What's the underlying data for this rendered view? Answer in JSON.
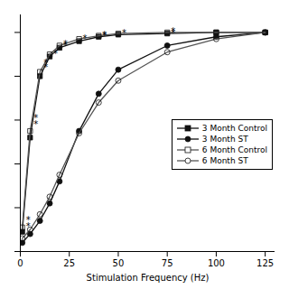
{
  "chart_data": {
    "type": "line",
    "xlabel": "Stimulation Frequency (Hz)",
    "xlim": [
      0,
      130
    ],
    "ylim": [
      0,
      1.08
    ],
    "xticks": [
      0,
      25,
      50,
      75,
      100,
      125
    ],
    "yticks": [
      0,
      0.2,
      0.4,
      0.6,
      0.8,
      1.0
    ],
    "tick_labels": "x",
    "grid": false,
    "legend": "center right",
    "x": [
      1,
      5,
      10,
      15,
      20,
      30,
      40,
      50,
      75,
      100,
      125
    ],
    "series": [
      {
        "name": "3 Month Control",
        "color": "#111111",
        "marker": "square",
        "line_style": "solid",
        "values": [
          0.09,
          0.52,
          0.8,
          0.89,
          0.93,
          0.96,
          0.98,
          0.99,
          0.995,
          1.0,
          1.0
        ]
      },
      {
        "name": "3 Month ST",
        "color": "#111111",
        "marker": "circle",
        "line_style": "solid",
        "values": [
          0.04,
          0.08,
          0.14,
          0.22,
          0.32,
          0.55,
          0.72,
          0.83,
          0.94,
          0.98,
          1.0
        ]
      },
      {
        "name": "6 Month Control",
        "color": "#555555",
        "marker": "open-square",
        "line_style": "solid",
        "values": [
          0.11,
          0.55,
          0.82,
          0.9,
          0.94,
          0.97,
          0.985,
          0.995,
          1.0,
          1.0,
          1.0
        ]
      },
      {
        "name": "6 Month ST",
        "color": "#555555",
        "marker": "open-circle",
        "line_style": "solid",
        "values": [
          0.06,
          0.1,
          0.17,
          0.25,
          0.35,
          0.54,
          0.68,
          0.78,
          0.91,
          0.97,
          1.0
        ]
      }
    ],
    "annotations": [
      {
        "text": "*",
        "x": 1,
        "y": 0.115
      },
      {
        "text": "*",
        "x": 5,
        "y": 0.58
      },
      {
        "text": "*",
        "x": 10,
        "y": 0.84
      },
      {
        "text": "*",
        "x": 15,
        "y": 0.9
      },
      {
        "text": "*",
        "x": 20,
        "y": 0.94
      },
      {
        "text": "*",
        "x": 30,
        "y": 0.97
      },
      {
        "text": "*",
        "x": 40,
        "y": 0.985
      },
      {
        "text": "*",
        "x": 75,
        "y": 0.998
      },
      {
        "text": "*",
        "x": 1,
        "y": 0.145
      },
      {
        "text": "*",
        "x": 5,
        "y": 0.61
      },
      {
        "text": "*",
        "x": 10,
        "y": 0.86
      },
      {
        "text": "*",
        "x": 20,
        "y": 0.945
      },
      {
        "text": "*",
        "x": 40,
        "y": 0.99
      },
      {
        "text": "*",
        "x": 50,
        "y": 0.998
      },
      {
        "text": "*",
        "x": 75,
        "y": 1.005
      }
    ]
  }
}
